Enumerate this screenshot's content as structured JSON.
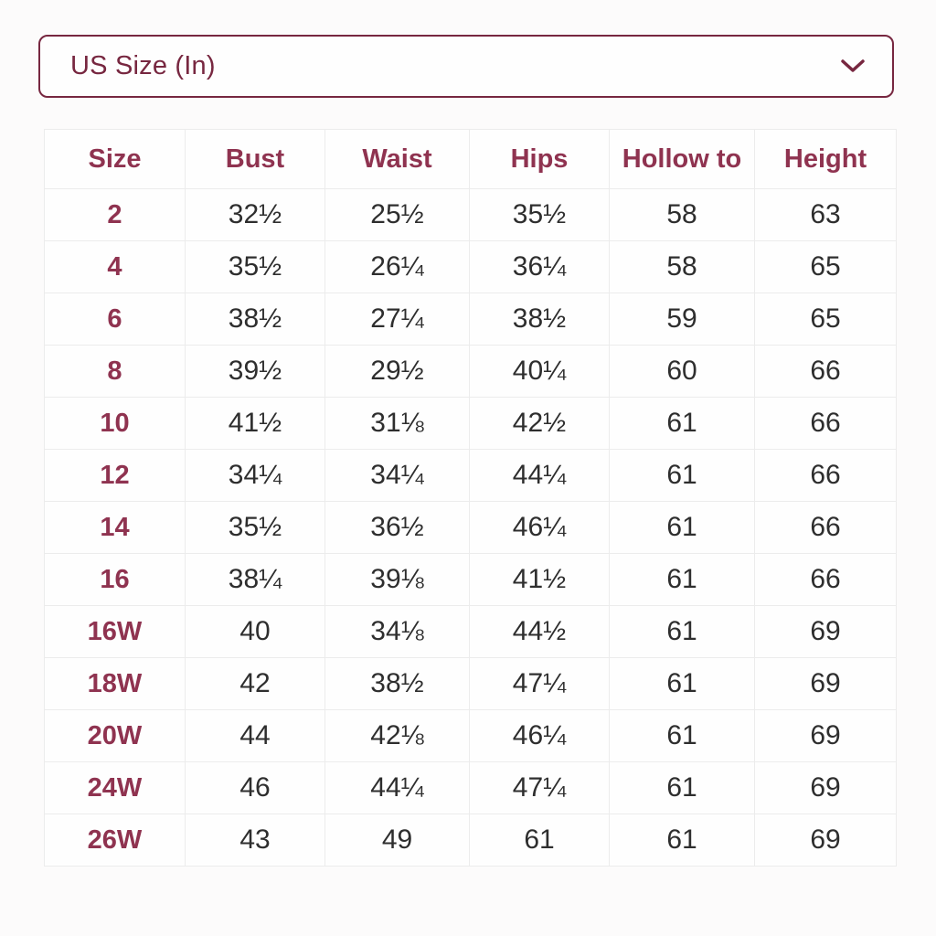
{
  "colors": {
    "accent": "#772740",
    "header_text": "#8F3350",
    "cell_text": "#2E2E2E",
    "grid_line": "#ECECEC",
    "page_background": "#FCFBFB"
  },
  "dropdown": {
    "label": "US Size (In)",
    "chevron_icon": "chevron-down-icon"
  },
  "size_table": {
    "columns": [
      "Size",
      "Bust",
      "Waist",
      "Hips",
      "Hollow to",
      "Height"
    ],
    "rows": [
      [
        "2",
        "32½",
        "25½",
        "35½",
        "58",
        "63"
      ],
      [
        "4",
        "35½",
        "26¼",
        "36¼",
        "58",
        "65"
      ],
      [
        "6",
        "38½",
        "27¼",
        "38½",
        "59",
        "65"
      ],
      [
        "8",
        "39½",
        "29½",
        "40¼",
        "60",
        "66"
      ],
      [
        "10",
        "41½",
        "31⅛",
        "42½",
        "61",
        "66"
      ],
      [
        "12",
        "34¼",
        "34¼",
        "44¼",
        "61",
        "66"
      ],
      [
        "14",
        "35½",
        "36½",
        "46¼",
        "61",
        "66"
      ],
      [
        "16",
        "38¼",
        "39⅛",
        "41½",
        "61",
        "66"
      ],
      [
        "16W",
        "40",
        "34⅛",
        "44½",
        "61",
        "69"
      ],
      [
        "18W",
        "42",
        "38½",
        "47¼",
        "61",
        "69"
      ],
      [
        "20W",
        "44",
        "42⅛",
        "46¼",
        "61",
        "69"
      ],
      [
        "24W",
        "46",
        "44¼",
        "47¼",
        "61",
        "69"
      ],
      [
        "26W",
        "43",
        "49",
        "61",
        "61",
        "69"
      ]
    ]
  }
}
